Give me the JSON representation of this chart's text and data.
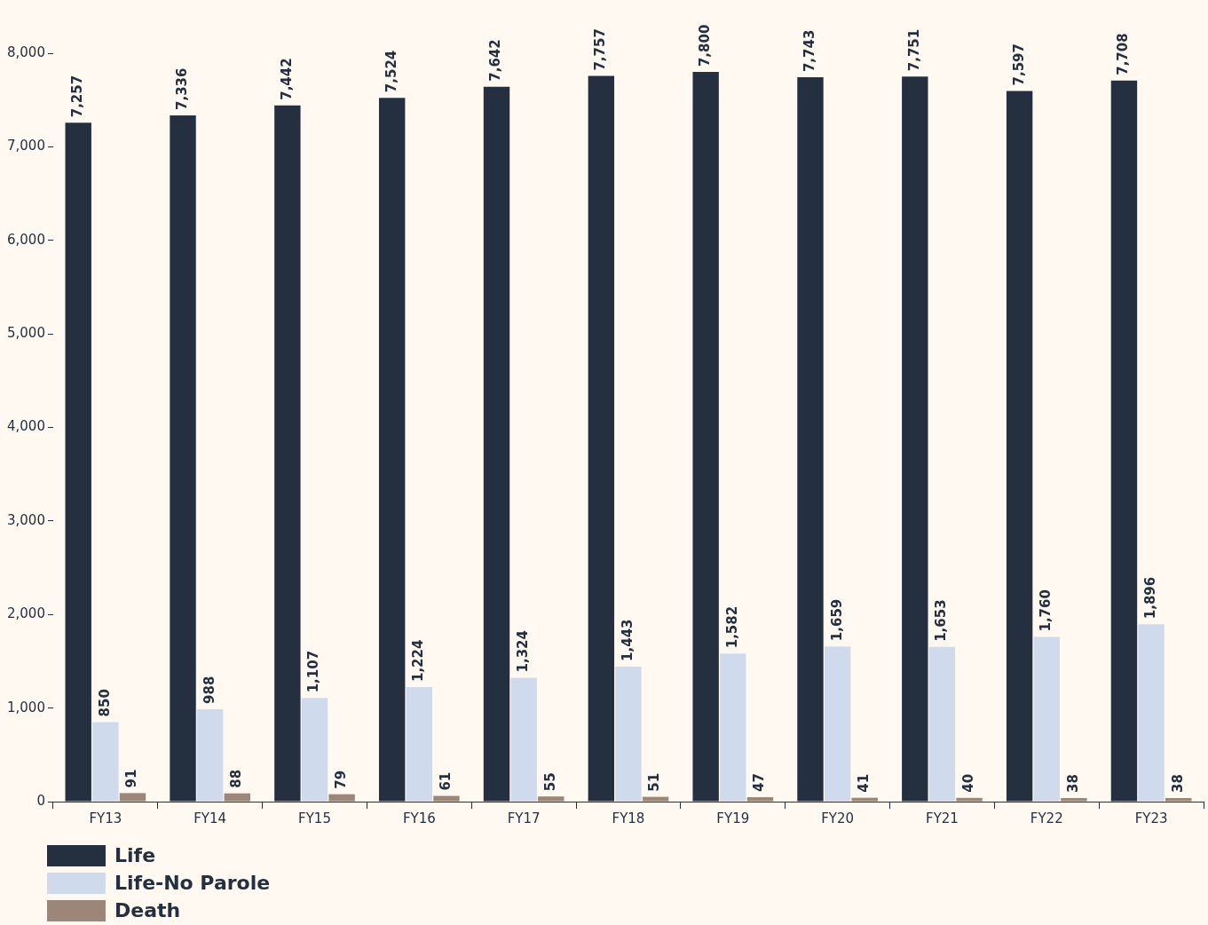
{
  "chart_data": {
    "type": "bar",
    "categories": [
      "FY13",
      "FY14",
      "FY15",
      "FY16",
      "FY17",
      "FY18",
      "FY19",
      "FY20",
      "FY21",
      "FY22",
      "FY23"
    ],
    "series": [
      {
        "name": "Life",
        "color": "#243040",
        "values": [
          7257,
          7336,
          7442,
          7524,
          7642,
          7757,
          7800,
          7743,
          7751,
          7597,
          7708
        ],
        "value_labels": [
          "7,257",
          "7,336",
          "7,442",
          "7,524",
          "7,642",
          "7,757",
          "7,800",
          "7,743",
          "7,751",
          "7,597",
          "7,708"
        ]
      },
      {
        "name": "Life-No Parole",
        "color": "#cfdaec",
        "values": [
          850,
          988,
          1107,
          1224,
          1324,
          1443,
          1582,
          1659,
          1653,
          1760,
          1896
        ],
        "value_labels": [
          "850",
          "988",
          "1,107",
          "1,224",
          "1,324",
          "1,443",
          "1,582",
          "1,659",
          "1,653",
          "1,760",
          "1,896"
        ]
      },
      {
        "name": "Death",
        "color": "#9b8677",
        "values": [
          91,
          88,
          79,
          61,
          55,
          51,
          47,
          41,
          40,
          38,
          38
        ],
        "value_labels": [
          "91",
          "88",
          "79",
          "61",
          "55",
          "51",
          "47",
          "41",
          "40",
          "38",
          "38"
        ]
      }
    ],
    "ylim": [
      0,
      8000
    ],
    "yticks": [
      0,
      {
        "value": 1000,
        "label": "1,000"
      },
      {
        "value": 2000,
        "label": "2,000"
      },
      {
        "value": 3000,
        "label": "3,000"
      },
      {
        "value": 4000,
        "label": "4,000"
      },
      {
        "value": 5000,
        "label": "5,000"
      },
      {
        "value": 6000,
        "label": "6,000"
      },
      {
        "value": 7000,
        "label": "7,000"
      },
      {
        "value": 8000,
        "label": "8,000"
      }
    ],
    "grid": false,
    "legend": "bottom left"
  }
}
